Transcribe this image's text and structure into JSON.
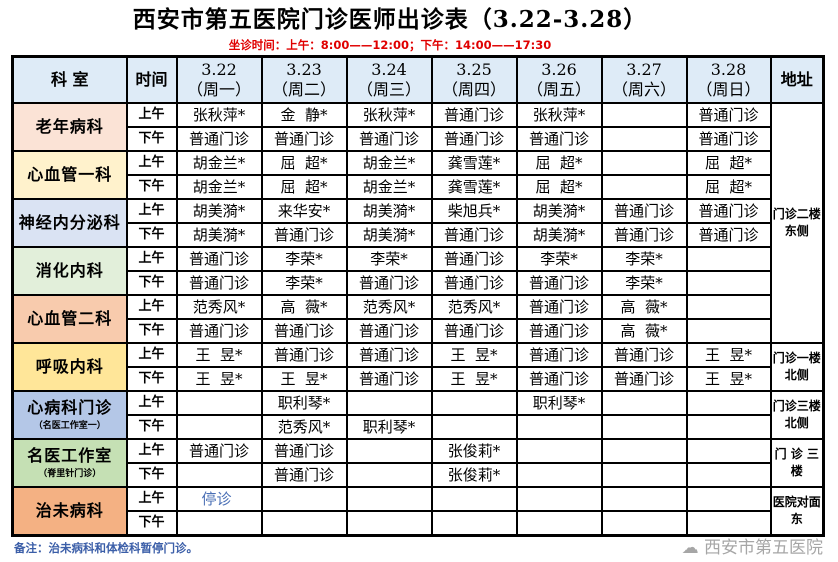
{
  "title": "西安市第五医院门诊医师出诊表（3.22-3.28）",
  "subtitle": "坐诊时间：上午：8:00——12:00；下午：14:00——17:30",
  "header": {
    "dept": "科 室",
    "time": "时间",
    "days": [
      {
        "date": "3.22",
        "weekday": "（周一）"
      },
      {
        "date": "3.23",
        "weekday": "（周二）"
      },
      {
        "date": "3.24",
        "weekday": "（周三）"
      },
      {
        "date": "3.25",
        "weekday": "（周四）"
      },
      {
        "date": "3.26",
        "weekday": "（周五）"
      },
      {
        "date": "3.27",
        "weekday": "（周六）"
      },
      {
        "date": "3.28",
        "weekday": "（周日）"
      }
    ],
    "address": "地址"
  },
  "departments": [
    {
      "name": "老年病科",
      "sub": "",
      "color": "#fbe3d6",
      "am": [
        "张秋萍*",
        "金  静*",
        "张秋萍*",
        "普通门诊",
        "张秋萍*",
        "",
        "普通门诊"
      ],
      "pm": [
        "普通门诊",
        "普通门诊",
        "普通门诊",
        "普通门诊",
        "普通门诊",
        "",
        "普通门诊"
      ]
    },
    {
      "name": "心血管一科",
      "sub": "",
      "color": "#fff2cc",
      "am": [
        "胡金兰*",
        "屈  超*",
        "胡金兰*",
        "龚雪莲*",
        "屈  超*",
        "",
        "屈  超*"
      ],
      "pm": [
        "胡金兰*",
        "屈  超*",
        "胡金兰*",
        "龚雪莲*",
        "屈  超*",
        "",
        "屈  超*"
      ]
    },
    {
      "name": "神经内分泌科",
      "sub": "",
      "color": "#dae3f3",
      "am": [
        "胡美漪*",
        "来华安*",
        "胡美漪*",
        "柴旭兵*",
        "胡美漪*",
        "普通门诊",
        "普通门诊"
      ],
      "pm": [
        "胡美漪*",
        "普通门诊",
        "胡美漪*",
        "普通门诊",
        "胡美漪*",
        "普通门诊",
        "普通门诊"
      ]
    },
    {
      "name": "消化内科",
      "sub": "",
      "color": "#e2efda",
      "am": [
        "普通门诊",
        "李荣*",
        "李荣*",
        "普通门诊",
        "李荣*",
        "李荣*",
        ""
      ],
      "pm": [
        "普通门诊",
        "李荣*",
        "普通门诊",
        "普通门诊",
        "普通门诊",
        "李荣*",
        ""
      ]
    },
    {
      "name": "心血管二科",
      "sub": "",
      "color": "#f8cbad",
      "am": [
        "范秀风*",
        "高  薇*",
        "范秀风*",
        "范秀风*",
        "普通门诊",
        "高  薇*",
        ""
      ],
      "pm": [
        "普通门诊",
        "普通门诊",
        "普通门诊",
        "普通门诊",
        "普通门诊",
        "高  薇*",
        ""
      ]
    },
    {
      "name": "呼吸内科",
      "sub": "",
      "color": "#ffe699",
      "am": [
        "王  昱*",
        "普通门诊",
        "普通门诊",
        "王  昱*",
        "普通门诊",
        "普通门诊",
        "王  昱*"
      ],
      "pm": [
        "王  昱*",
        "王  昱*",
        "普通门诊",
        "王  昱*",
        "普通门诊",
        "普通门诊",
        "王  昱*"
      ]
    },
    {
      "name": "心病科门诊",
      "sub": "（名医工作室一）",
      "color": "#b4c7e7",
      "am": [
        "",
        "职利琴*",
        "",
        "",
        "职利琴*",
        "",
        ""
      ],
      "pm": [
        "",
        "范秀风*",
        "职利琴*",
        "",
        "",
        "",
        ""
      ]
    },
    {
      "name": "名医工作室",
      "sub": "（脊里针门诊）",
      "color": "#c5e0b4",
      "am": [
        "普通门诊",
        "普通门诊",
        "",
        "张俊莉*",
        "",
        "",
        ""
      ],
      "pm": [
        "",
        "普通门诊",
        "",
        "张俊莉*",
        "",
        "",
        ""
      ]
    },
    {
      "name": "治未病科",
      "sub": "",
      "color": "#f4b183",
      "am": [
        "停诊",
        "",
        "",
        "",
        "",
        "",
        ""
      ],
      "pm": [
        "",
        "",
        "",
        "",
        "",
        "",
        ""
      ]
    }
  ],
  "time_labels": {
    "am": "上午",
    "pm": "下午"
  },
  "addresses": [
    {
      "text": "门诊二楼东侧",
      "from_dept": 0,
      "dept_span": 5
    },
    {
      "text": "门诊一楼北侧",
      "from_dept": 5,
      "dept_span": 1
    },
    {
      "text": "门诊三楼北侧",
      "from_dept": 6,
      "dept_span": 1
    },
    {
      "text": "门  诊 三  楼",
      "from_dept": 7,
      "dept_span": 1
    },
    {
      "text": "医院对面东",
      "from_dept": 8,
      "dept_span": 1
    }
  ],
  "note": "备注：治未病科和体检科暂停门诊。",
  "watermark": "西安市第五医院",
  "colors": {
    "header_bg": "#deebf7",
    "subtitle": "#e00000",
    "note": "#3b5ea8",
    "stop": "#4a6fb5"
  }
}
